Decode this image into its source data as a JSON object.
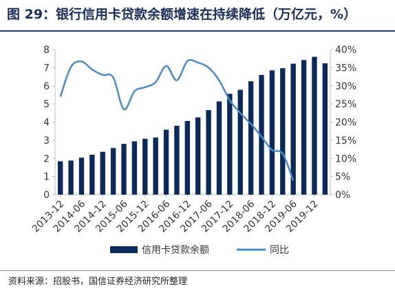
{
  "title": "图 29：银行信用卡贷款余额增速在持续降低（万亿元，%）",
  "source": "资料来源：招股书，国信证券经济研究所整理",
  "colors": {
    "bar": "#0b2a5b",
    "line": "#4a8ac9",
    "axis": "#bfbfbf",
    "title": "#1a2d5a"
  },
  "chart_data": {
    "type": "bar+line",
    "x_ticks": [
      "2013-12",
      "2014-06",
      "2014-12",
      "2015-06",
      "2015-12",
      "2016-06",
      "2016-12",
      "2017-06",
      "2017-12",
      "2018-06",
      "2018-12",
      "2019-06",
      "2019-12"
    ],
    "y_left": {
      "ylim": [
        0,
        8
      ],
      "ticks": [
        "0",
        "1",
        "2",
        "3",
        "4",
        "5",
        "6",
        "7",
        "8"
      ]
    },
    "y_right": {
      "ylim": [
        0,
        40
      ],
      "ticks": [
        "0%",
        "5%",
        "10%",
        "15%",
        "20%",
        "25%",
        "30%",
        "35%",
        "40%"
      ]
    },
    "series": [
      {
        "name": "信用卡贷款余额",
        "axis": "left",
        "kind": "bar",
        "values": [
          1.84,
          1.88,
          2.04,
          2.2,
          2.36,
          2.57,
          2.8,
          2.94,
          3.08,
          3.15,
          3.58,
          3.8,
          4.06,
          4.26,
          4.66,
          5.14,
          5.56,
          5.78,
          6.25,
          6.6,
          6.85,
          6.97,
          7.22,
          7.42,
          7.6,
          7.24
        ]
      },
      {
        "name": "同比",
        "axis": "right",
        "kind": "line",
        "values": [
          27,
          35.2,
          36.7,
          34.5,
          33,
          32.3,
          23.5,
          28.5,
          29.6,
          31,
          35.5,
          31.5,
          36.8,
          36.4,
          35,
          31.5,
          26,
          22.5,
          19.5,
          16,
          12.3,
          11.3,
          3.8
        ]
      }
    ]
  }
}
